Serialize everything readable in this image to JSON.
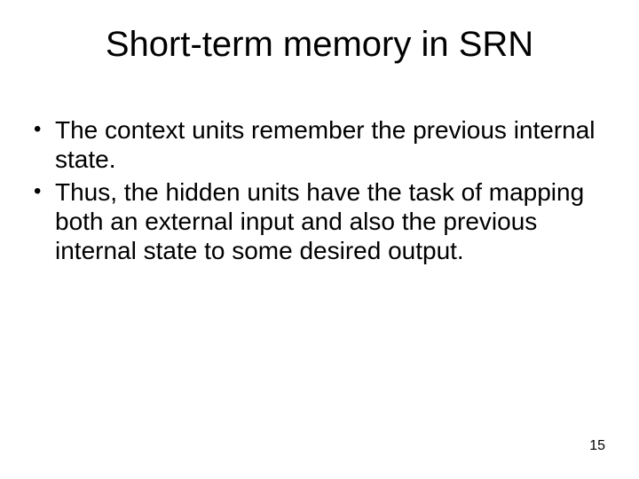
{
  "slide": {
    "title": "Short-term memory in SRN",
    "bullets": [
      "The context units remember the previous internal state.",
      "Thus, the hidden units have the task of mapping both an external input and also the previous internal state to some desired output."
    ],
    "page_number": "15"
  },
  "style": {
    "background_color": "#ffffff",
    "text_color": "#000000",
    "title_fontsize": 40,
    "body_fontsize": 28,
    "page_number_fontsize": 16,
    "font_family": "Arial"
  }
}
